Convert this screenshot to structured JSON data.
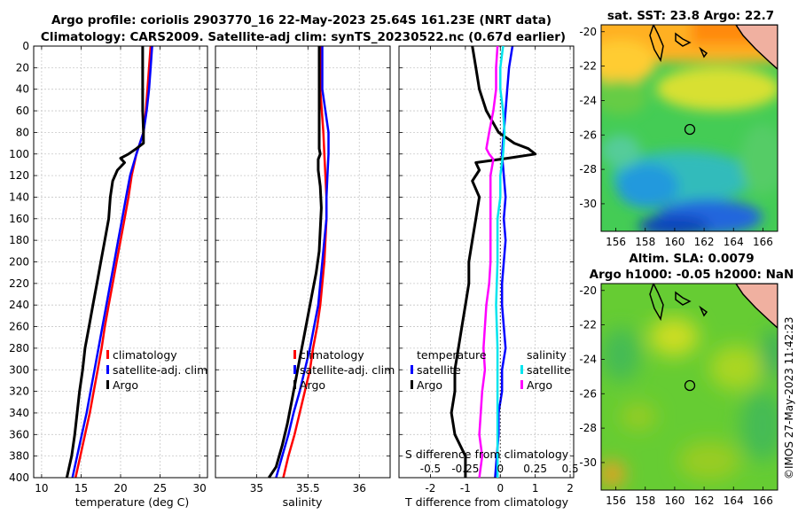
{
  "title": {
    "line1": "Argo profile: coriolis 2903770_16 22-May-2023 25.64S 161.23E (NRT data)",
    "line2": "Climatology: CARS2009. Satellite-adj clim: synTS_20230522.nc (0.67d earlier)"
  },
  "colors": {
    "climatology": "#ff0000",
    "satellite": "#0000ff",
    "argo": "#000000",
    "salinity_sat": "#00e5ee",
    "salinity_argo": "#ff00ff"
  },
  "depth_ticks": [
    "0",
    "20",
    "40",
    "60",
    "80",
    "100",
    "120",
    "140",
    "160",
    "180",
    "200",
    "220",
    "240",
    "260",
    "280",
    "300",
    "320",
    "340",
    "360",
    "380",
    "400"
  ],
  "chart_data": [
    {
      "type": "line",
      "id": "temperature-profile",
      "xlabel": "temperature (deg C)",
      "ylabel": "depth",
      "xlim": [
        9,
        31
      ],
      "ylim": [
        400,
        0
      ],
      "xticks": [
        "10",
        "15",
        "20",
        "25",
        "30"
      ],
      "legend": [
        "climatology",
        "satellite-adj. clim",
        "Argo"
      ],
      "series": [
        {
          "name": "climatology",
          "depth": [
            0,
            20,
            40,
            60,
            80,
            100,
            120,
            140,
            160,
            180,
            200,
            220,
            240,
            260,
            280,
            300,
            320,
            340,
            360,
            380,
            400
          ],
          "values": [
            23.8,
            23.6,
            23.4,
            23.2,
            22.9,
            22.0,
            21.4,
            21.0,
            20.5,
            20.0,
            19.5,
            19.0,
            18.5,
            18.0,
            17.6,
            17.1,
            16.6,
            16.1,
            15.5,
            14.9,
            14.3
          ]
        },
        {
          "name": "satellite-adj. clim",
          "depth": [
            0,
            20,
            40,
            60,
            80,
            100,
            120,
            140,
            160,
            180,
            200,
            220,
            240,
            260,
            280,
            300,
            320,
            340,
            360,
            380,
            400
          ],
          "values": [
            24.0,
            23.8,
            23.6,
            23.3,
            22.9,
            22.0,
            21.2,
            20.7,
            20.2,
            19.7,
            19.2,
            18.7,
            18.2,
            17.7,
            17.2,
            16.7,
            16.2,
            15.7,
            15.1,
            14.5,
            13.9
          ]
        },
        {
          "name": "Argo",
          "depth": [
            0,
            20,
            40,
            60,
            80,
            90,
            95,
            100,
            104,
            108,
            115,
            125,
            140,
            160,
            180,
            200,
            220,
            240,
            260,
            280,
            300,
            320,
            340,
            360,
            380,
            400
          ],
          "values": [
            22.8,
            22.8,
            22.8,
            22.8,
            22.9,
            22.9,
            22.0,
            21.0,
            20.0,
            20.5,
            19.6,
            19.0,
            18.7,
            18.5,
            18.0,
            17.5,
            17.0,
            16.5,
            16.0,
            15.5,
            15.2,
            14.8,
            14.5,
            14.2,
            13.8,
            13.2
          ]
        }
      ]
    },
    {
      "type": "line",
      "id": "salinity-profile",
      "xlabel": "salinity",
      "ylabel": "depth",
      "xlim": [
        34.6,
        36.3
      ],
      "xticks": [
        "35",
        "35.5",
        "36"
      ],
      "legend": [
        "climatology",
        "satellite-adj. clim",
        "Argo"
      ],
      "series": [
        {
          "name": "climatology",
          "depth": [
            0,
            40,
            80,
            100,
            120,
            140,
            160,
            180,
            200,
            220,
            240,
            260,
            280,
            300,
            320,
            340,
            360,
            380,
            400
          ],
          "values": [
            35.62,
            35.62,
            35.65,
            35.66,
            35.67,
            35.68,
            35.68,
            35.67,
            35.66,
            35.64,
            35.62,
            35.59,
            35.55,
            35.52,
            35.47,
            35.42,
            35.37,
            35.31,
            35.26
          ]
        },
        {
          "name": "satellite-adj. clim",
          "depth": [
            0,
            40,
            60,
            80,
            100,
            120,
            140,
            160,
            180,
            200,
            220,
            240,
            260,
            280,
            300,
            320,
            340,
            360,
            380,
            400
          ],
          "values": [
            35.64,
            35.64,
            35.67,
            35.7,
            35.7,
            35.69,
            35.68,
            35.68,
            35.66,
            35.64,
            35.62,
            35.6,
            35.56,
            35.52,
            35.47,
            35.42,
            35.36,
            35.31,
            35.25,
            35.19
          ]
        },
        {
          "name": "Argo",
          "depth": [
            0,
            20,
            40,
            60,
            80,
            90,
            95,
            100,
            105,
            115,
            130,
            150,
            170,
            190,
            210,
            230,
            250,
            270,
            290,
            310,
            330,
            350,
            370,
            390,
            400
          ],
          "values": [
            35.61,
            35.61,
            35.61,
            35.61,
            35.61,
            35.61,
            35.61,
            35.62,
            35.6,
            35.6,
            35.62,
            35.63,
            35.62,
            35.61,
            35.58,
            35.54,
            35.5,
            35.46,
            35.42,
            35.38,
            35.34,
            35.3,
            35.25,
            35.19,
            35.12
          ]
        }
      ]
    },
    {
      "type": "line",
      "id": "difference-profile",
      "xlabel": "T difference from climatology",
      "xlabel_top": "S difference from climatology",
      "xlim": [
        -2.9,
        2.1
      ],
      "xticks": [
        "-2",
        "-1",
        "0",
        "1",
        "2"
      ],
      "xticks_salinity": [
        "-0.5",
        "-0.25",
        "0",
        "0.25",
        "0.5"
      ],
      "legend_temperature": {
        "title": "temperature",
        "items": [
          "satellite",
          "Argo"
        ]
      },
      "legend_salinity": {
        "title": "salinity",
        "items": [
          "satellite",
          "Argo"
        ]
      },
      "series": [
        {
          "name": "temperature satellite",
          "depth": [
            0,
            20,
            40,
            60,
            80,
            100,
            120,
            140,
            160,
            180,
            200,
            220,
            240,
            260,
            280,
            300,
            320,
            340,
            360,
            380,
            400
          ],
          "values": [
            0.35,
            0.25,
            0.2,
            0.15,
            0.1,
            0.05,
            0.1,
            0.15,
            0.1,
            0.15,
            0.1,
            0.05,
            0.05,
            0.1,
            0.15,
            0.05,
            0.05,
            -0.05,
            -0.05,
            -0.1,
            -0.15
          ]
        },
        {
          "name": "temperature Argo",
          "depth": [
            0,
            20,
            40,
            60,
            80,
            90,
            95,
            100,
            104,
            108,
            115,
            125,
            140,
            160,
            180,
            200,
            220,
            240,
            260,
            280,
            300,
            320,
            340,
            360,
            380,
            400
          ],
          "values": [
            -0.8,
            -0.7,
            -0.6,
            -0.4,
            -0.05,
            0.4,
            0.8,
            1.0,
            0.2,
            -0.7,
            -0.6,
            -0.8,
            -0.6,
            -0.7,
            -0.8,
            -0.9,
            -0.9,
            -1.0,
            -1.1,
            -1.2,
            -1.3,
            -1.3,
            -1.4,
            -1.3,
            -1.0,
            -1.0
          ]
        },
        {
          "name": "salinity satellite",
          "depth": [
            0,
            20,
            40,
            60,
            80,
            100,
            120,
            140,
            160,
            180,
            200,
            240,
            280,
            320,
            360,
            400
          ],
          "values": [
            0.02,
            0.0,
            0.0,
            0.02,
            0.03,
            0.02,
            0.0,
            0.0,
            -0.02,
            -0.02,
            -0.02,
            -0.03,
            -0.02,
            -0.02,
            -0.02,
            -0.02
          ]
        },
        {
          "name": "salinity Argo",
          "depth": [
            0,
            20,
            40,
            60,
            80,
            95,
            100,
            105,
            120,
            140,
            160,
            180,
            200,
            220,
            240,
            260,
            280,
            300,
            320,
            340,
            360,
            380,
            400
          ],
          "values": [
            -0.02,
            -0.03,
            -0.03,
            -0.05,
            -0.08,
            -0.1,
            -0.08,
            -0.05,
            -0.07,
            -0.07,
            -0.07,
            -0.07,
            -0.07,
            -0.08,
            -0.1,
            -0.11,
            -0.12,
            -0.11,
            -0.13,
            -0.14,
            -0.15,
            -0.13,
            -0.15
          ]
        }
      ]
    },
    {
      "type": "heatmap",
      "id": "sst-map",
      "title": "sat. SST: 23.8  Argo: 22.7",
      "xticks": [
        "156",
        "158",
        "160",
        "162",
        "164",
        "166"
      ],
      "yticks": [
        "-20",
        "-22",
        "-24",
        "-26",
        "-28",
        "-30"
      ]
    },
    {
      "type": "heatmap",
      "id": "sla-map",
      "title_line1": "Altim. SLA: 0.0079",
      "title_line2": "Argo h1000: -0.05 h2000: NaN",
      "xticks": [
        "156",
        "158",
        "160",
        "162",
        "164",
        "166"
      ],
      "yticks": [
        "-20",
        "-22",
        "-24",
        "-26",
        "-28",
        "-30"
      ]
    }
  ],
  "watermark": "©IMOS 27-May-2023 11:42:23"
}
